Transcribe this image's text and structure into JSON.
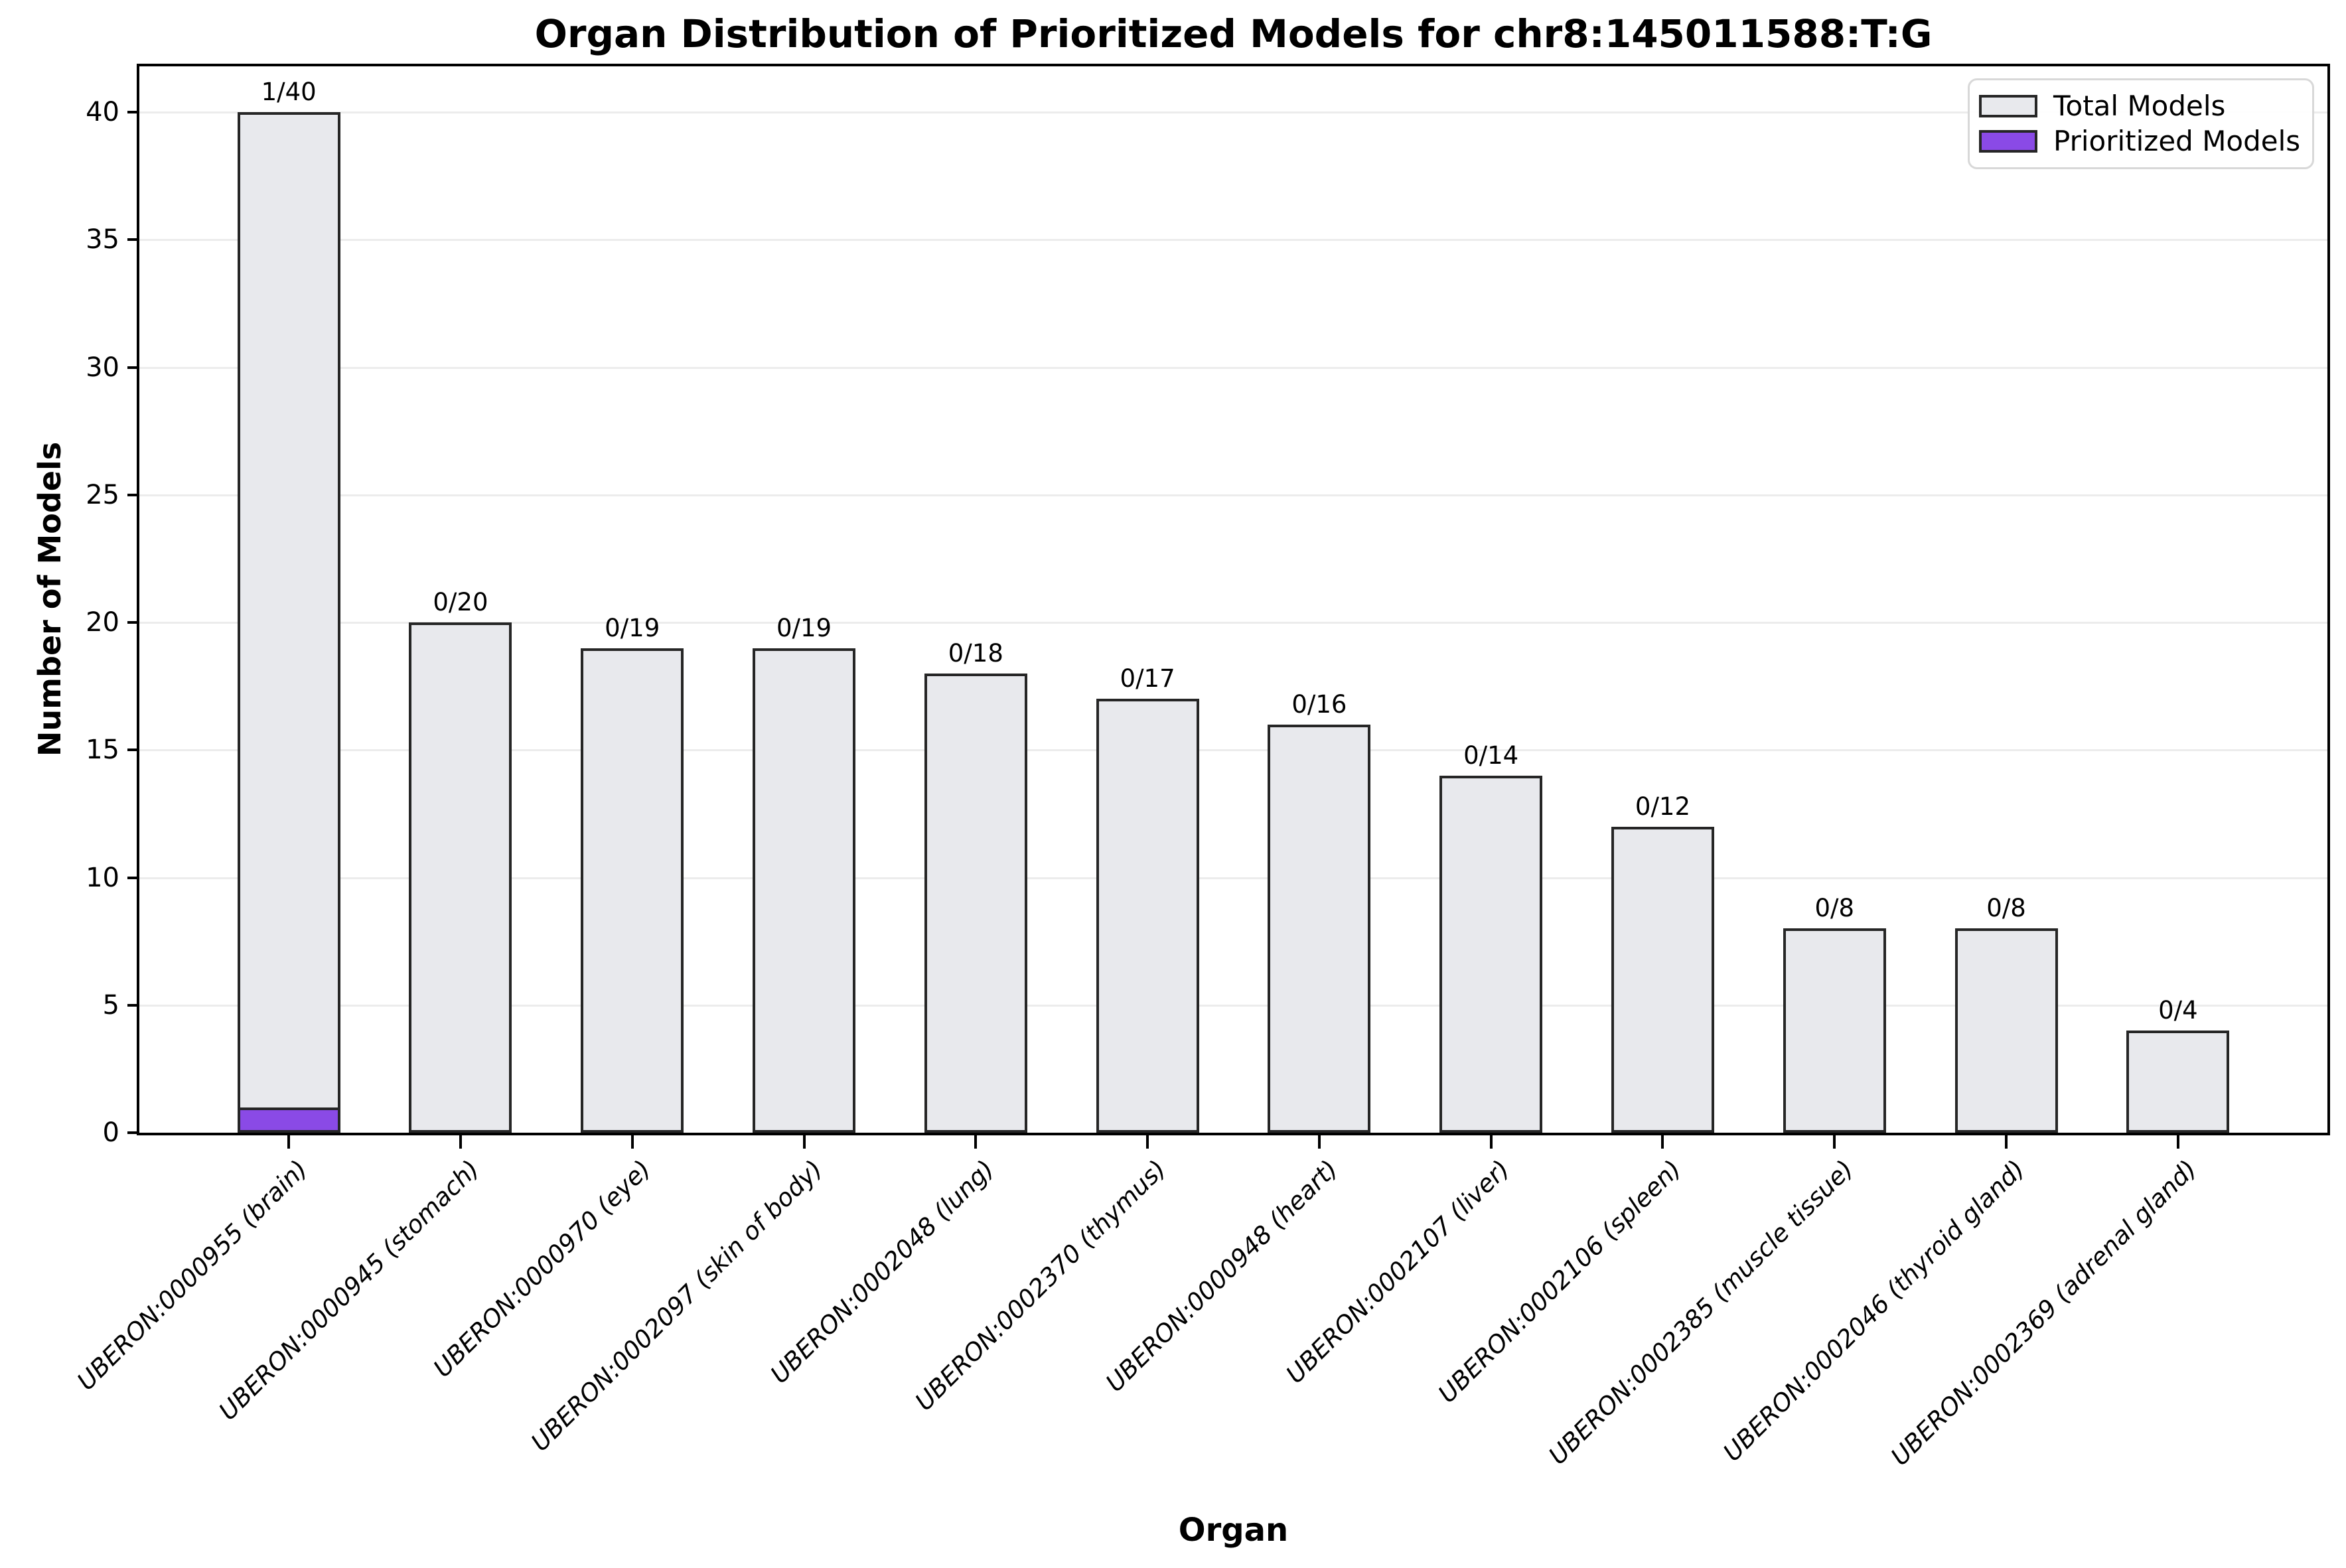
{
  "title": "Organ Distribution of Prioritized Models for chr8:145011588:T:G",
  "xlabel": "Organ",
  "ylabel": "Number of Models",
  "legend": {
    "total_label": "Total Models",
    "prioritized_label": "Prioritized Models"
  },
  "colors": {
    "total_fill": "#e8e9ed",
    "prioritized_fill": "#8a4ae6",
    "bar_edge": "#262626",
    "grid": "#ececec",
    "axis": "#000000",
    "legend_border": "#d8d8d8"
  },
  "chart_data": {
    "type": "bar",
    "title": "Organ Distribution of Prioritized Models for chr8:145011588:T:G",
    "xlabel": "Organ",
    "ylabel": "Number of Models",
    "categories": [
      "UBERON:0000955 (brain)",
      "UBERON:0000945 (stomach)",
      "UBERON:0000970 (eye)",
      "UBERON:0002097 (skin of body)",
      "UBERON:0002048 (lung)",
      "UBERON:0002370 (thymus)",
      "UBERON:0000948 (heart)",
      "UBERON:0002107 (liver)",
      "UBERON:0002106 (spleen)",
      "UBERON:0002385 (muscle tissue)",
      "UBERON:0002046 (thyroid gland)",
      "UBERON:0002369 (adrenal gland)"
    ],
    "series": [
      {
        "name": "Total Models",
        "values": [
          40,
          20,
          19,
          19,
          18,
          17,
          16,
          14,
          12,
          8,
          8,
          4
        ]
      },
      {
        "name": "Prioritized Models",
        "values": [
          1,
          0,
          0,
          0,
          0,
          0,
          0,
          0,
          0,
          0,
          0,
          0
        ]
      }
    ],
    "bar_labels": [
      "1/40",
      "0/20",
      "0/19",
      "0/19",
      "0/18",
      "0/17",
      "0/16",
      "0/14",
      "0/12",
      "0/8",
      "0/8",
      "0/4"
    ],
    "yticks": [
      0,
      5,
      10,
      15,
      20,
      25,
      30,
      35,
      40
    ],
    "ylim": [
      0,
      41.8
    ],
    "grid": "horizontal",
    "legend_position": "upper right"
  }
}
